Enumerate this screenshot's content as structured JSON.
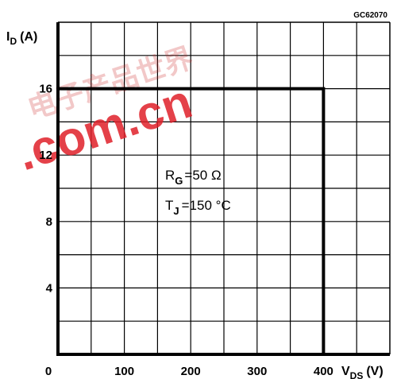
{
  "chart_data": {
    "type": "line",
    "code": "GC62070",
    "xlabel_main": "V",
    "xlabel_sub": "DS",
    "xlabel_unit": "(V)",
    "ylabel_main": "I",
    "ylabel_sub": "D",
    "ylabel_unit": "(A)",
    "xlim": [
      0,
      500
    ],
    "ylim": [
      0,
      20
    ],
    "x_ticks": [
      0,
      100,
      200,
      300,
      400
    ],
    "y_ticks": [
      4,
      8,
      12,
      16
    ],
    "grid": true,
    "grid_x_step": 50,
    "grid_y_step": 2,
    "series": [
      {
        "x": [
          0,
          400,
          400
        ],
        "y": [
          16,
          16,
          0
        ]
      }
    ],
    "annotations": {
      "rg_main": "R",
      "rg_sub": "G",
      "rg_value": "=50 Ω",
      "tj_main": "T",
      "tj_sub": "J",
      "tj_value": "=150 °C"
    },
    "watermark": {
      "text": ".com.cn",
      "text_cjk": "电子产品世界",
      "color": "#e0202a"
    }
  }
}
